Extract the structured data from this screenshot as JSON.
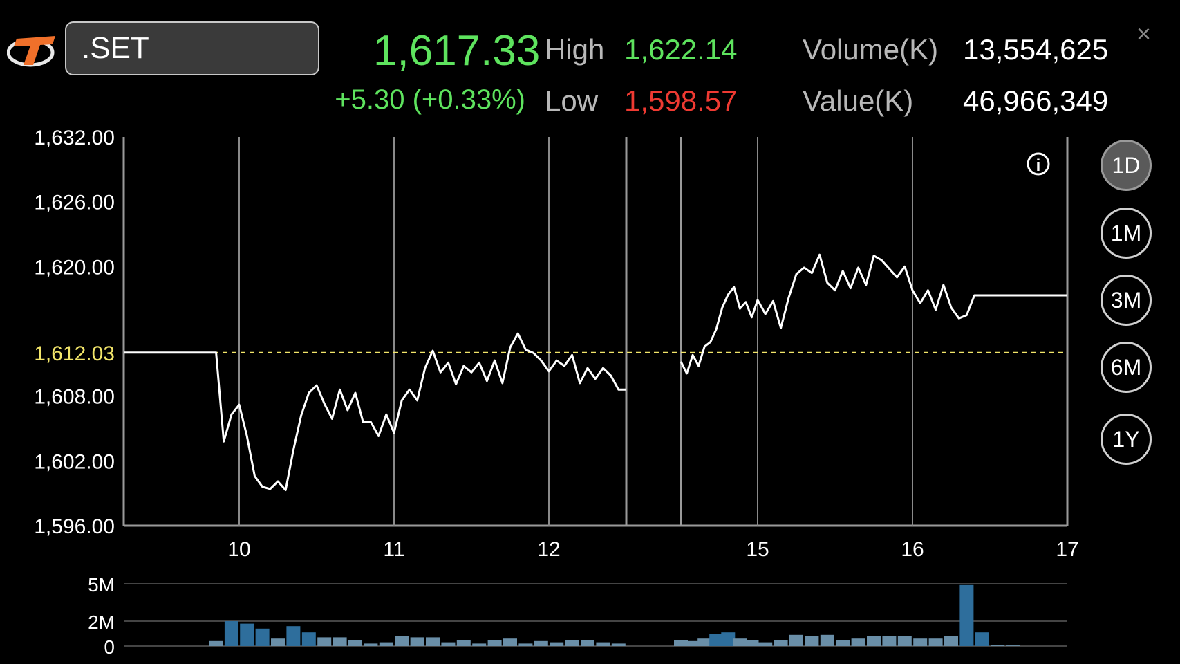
{
  "header": {
    "symbol": ".SET",
    "last": "1,617.33",
    "change": "+5.30 (+0.33%)",
    "high_label": "High",
    "high_value": "1,622.14",
    "low_label": "Low",
    "low_value": "1,598.57",
    "volume_label": "Volume(K)",
    "volume_value": "13,554,625",
    "value_label": "Value(K)",
    "value_value": "46,966,349",
    "close_icon": "×"
  },
  "periods": [
    "1D",
    "1M",
    "3M",
    "6M",
    "1Y"
  ],
  "active_period": "1D",
  "colors": {
    "up": "#5ee35e",
    "down": "#ef3a32",
    "prev_close": "#f2e56a",
    "volume_bar": "#2e6e9c",
    "volume_bar_light": "#6a8fa8"
  },
  "chart_data": [
    {
      "type": "line",
      "y_tick_labels": [
        "1,632.00",
        "1,626.00",
        "1,620.00",
        "1,612.03",
        "1,608.00",
        "1,602.00",
        "1,596.00"
      ],
      "y_ticks": [
        1632,
        1626,
        1620,
        1612.03,
        1608,
        1602,
        1596
      ],
      "ylim": [
        1596,
        1632
      ],
      "x_tick_labels": [
        "10",
        "11",
        "12",
        "15",
        "16",
        "17"
      ],
      "x_ticks": [
        10,
        11,
        12,
        15,
        16,
        17
      ],
      "session_break": {
        "from": 12.5,
        "to": 14.35
      },
      "reference_line": {
        "label": "1,612.03",
        "value": 1612.03
      },
      "x": [
        9.25,
        9.85,
        9.9,
        9.95,
        10.0,
        10.05,
        10.1,
        10.15,
        10.2,
        10.25,
        10.3,
        10.35,
        10.4,
        10.45,
        10.5,
        10.55,
        10.6,
        10.65,
        10.7,
        10.75,
        10.8,
        10.85,
        10.9,
        10.95,
        11.0,
        11.05,
        11.1,
        11.15,
        11.2,
        11.25,
        11.3,
        11.35,
        11.4,
        11.45,
        11.5,
        11.55,
        11.6,
        11.65,
        11.7,
        11.75,
        11.8,
        11.85,
        11.9,
        11.95,
        12.0,
        12.05,
        12.1,
        12.15,
        12.2,
        12.25,
        12.3,
        12.35,
        12.4,
        12.45,
        12.5,
        14.35,
        14.4,
        14.45,
        14.5,
        14.55,
        14.6,
        14.65,
        14.7,
        14.75,
        14.8,
        14.85,
        14.9,
        14.95,
        15.0,
        15.05,
        15.1,
        15.15,
        15.2,
        15.25,
        15.3,
        15.35,
        15.4,
        15.45,
        15.5,
        15.55,
        15.6,
        15.65,
        15.7,
        15.75,
        15.8,
        15.85,
        15.9,
        15.95,
        16.0,
        16.05,
        16.1,
        16.15,
        16.2,
        16.25,
        16.3,
        16.35,
        16.4,
        16.45,
        16.5,
        16.55,
        16.6,
        17.0
      ],
      "values": [
        1612.03,
        1612.03,
        1603.8,
        1606.3,
        1607.2,
        1604.3,
        1600.6,
        1599.6,
        1599.4,
        1600.1,
        1599.3,
        1603.0,
        1606.2,
        1608.3,
        1609.0,
        1607.3,
        1605.9,
        1608.6,
        1606.7,
        1608.3,
        1605.6,
        1605.6,
        1604.3,
        1606.3,
        1604.6,
        1607.6,
        1608.6,
        1607.6,
        1610.6,
        1612.2,
        1610.2,
        1611.1,
        1609.1,
        1610.8,
        1610.2,
        1611.1,
        1609.4,
        1611.3,
        1609.2,
        1612.5,
        1613.8,
        1612.3,
        1612.0,
        1611.3,
        1610.3,
        1611.3,
        1610.8,
        1611.8,
        1609.2,
        1610.6,
        1609.6,
        1610.6,
        1609.9,
        1608.6,
        1608.6,
        1611.2,
        1610.1,
        1611.8,
        1610.8,
        1612.6,
        1613.0,
        1614.2,
        1616.2,
        1617.4,
        1618.1,
        1616.1,
        1616.7,
        1615.3,
        1616.9,
        1615.6,
        1616.8,
        1614.3,
        1617.1,
        1619.3,
        1619.9,
        1619.4,
        1621.1,
        1618.5,
        1617.8,
        1619.6,
        1618.0,
        1619.9,
        1618.3,
        1621.0,
        1620.6,
        1619.8,
        1619.0,
        1620.0,
        1617.8,
        1616.6,
        1617.8,
        1616.0,
        1618.3,
        1616.2,
        1615.2,
        1615.5,
        1617.33,
        1617.33,
        1617.33,
        1617.33,
        1617.33,
        1617.33
      ]
    },
    {
      "type": "bar",
      "y_tick_labels": [
        "5M",
        "2M",
        "0"
      ],
      "ylim": [
        0,
        5
      ],
      "x": [
        9.85,
        9.95,
        10.05,
        10.15,
        10.25,
        10.35,
        10.45,
        10.55,
        10.65,
        10.75,
        10.85,
        10.95,
        11.05,
        11.15,
        11.25,
        11.35,
        11.45,
        11.55,
        11.65,
        11.75,
        11.85,
        11.95,
        12.05,
        12.15,
        12.25,
        12.35,
        12.45,
        14.35,
        14.45,
        14.55,
        14.65,
        14.75,
        14.85,
        14.95,
        15.05,
        15.15,
        15.25,
        15.35,
        15.45,
        15.55,
        15.65,
        15.75,
        15.85,
        15.95,
        16.05,
        16.15,
        16.25,
        16.35,
        16.45,
        16.55,
        16.65
      ],
      "values": [
        0.4,
        2.0,
        1.8,
        1.4,
        0.6,
        1.6,
        1.1,
        0.7,
        0.7,
        0.5,
        0.2,
        0.3,
        0.8,
        0.7,
        0.7,
        0.3,
        0.5,
        0.2,
        0.5,
        0.6,
        0.2,
        0.4,
        0.3,
        0.5,
        0.5,
        0.3,
        0.2,
        0.5,
        0.4,
        0.6,
        1.0,
        1.1,
        0.6,
        0.5,
        0.3,
        0.5,
        0.9,
        0.8,
        0.9,
        0.5,
        0.6,
        0.8,
        0.8,
        0.8,
        0.6,
        0.6,
        0.8,
        4.9,
        1.1,
        0.1,
        0.05
      ]
    }
  ]
}
